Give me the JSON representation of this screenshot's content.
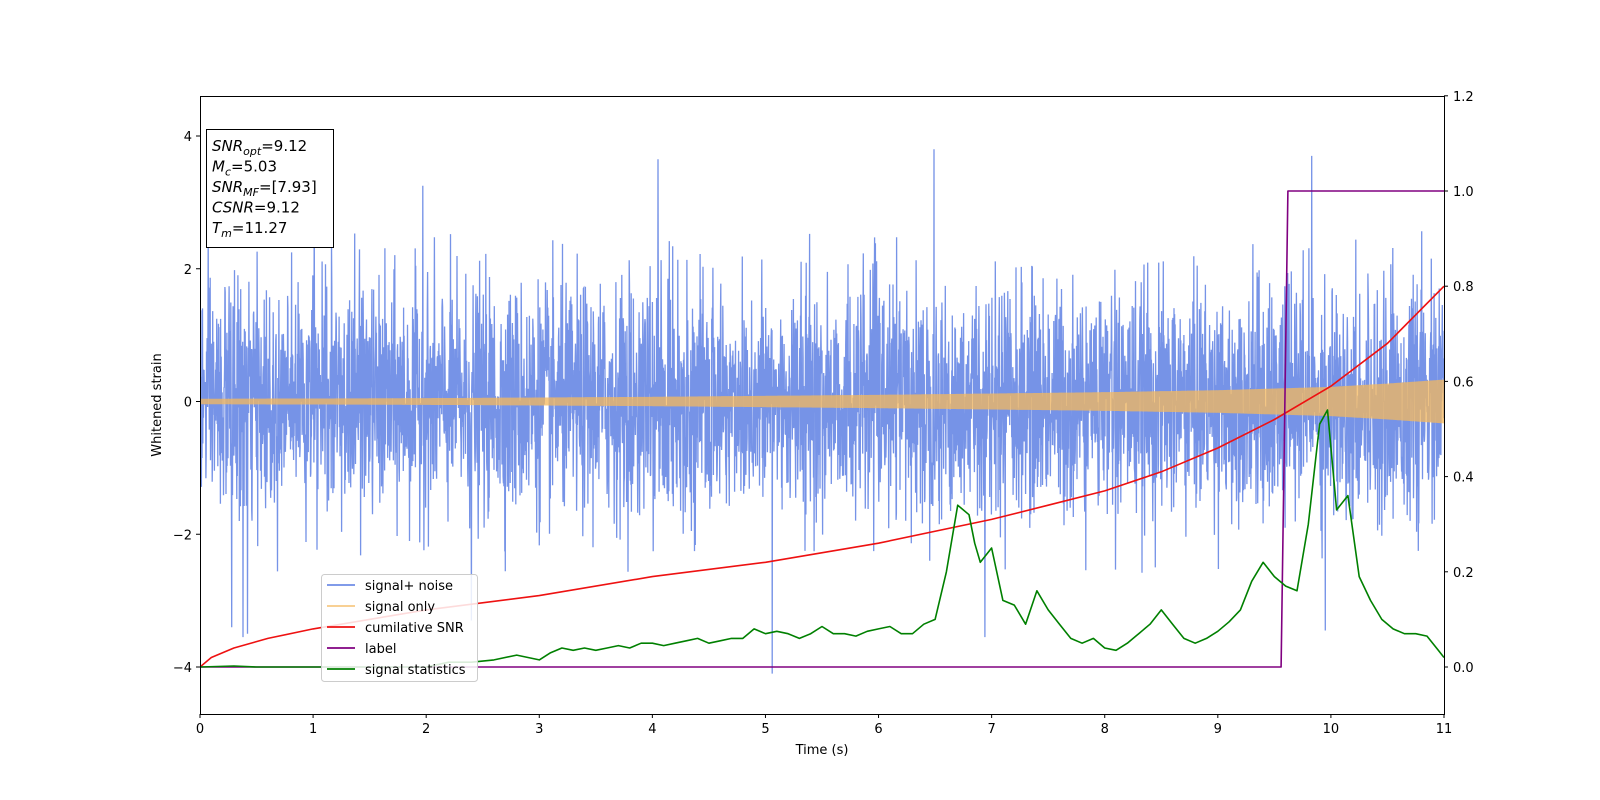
{
  "chart_data": {
    "type": "line",
    "xlabel": "Time (s)",
    "ylabel": "Whitened strain",
    "xlim": [
      0,
      11
    ],
    "ylim_left": [
      -4.5,
      4.6
    ],
    "ylim_right": [
      -0.1,
      1.2
    ],
    "xticks": [
      "0",
      "1",
      "2",
      "3",
      "4",
      "5",
      "6",
      "7",
      "8",
      "9",
      "10",
      "11"
    ],
    "yticks_left": [
      "−4",
      "−2",
      "0",
      "2",
      "4"
    ],
    "yticks_right": [
      "0.0",
      "0.2",
      "0.4",
      "0.6",
      "0.8",
      "1.0",
      "1.2"
    ],
    "info_box": {
      "lines": [
        {
          "base": "SNR",
          "sub": "opt",
          "rest": "=9.12"
        },
        {
          "base": "M",
          "sub": "c",
          "rest": "=5.03"
        },
        {
          "base": "SNR",
          "sub": "MF",
          "rest": "=[7.93]"
        },
        {
          "base": "CSNR",
          "sub": "",
          "rest": "=9.12"
        },
        {
          "base": "T",
          "sub": "m",
          "rest": "=11.27"
        }
      ]
    },
    "series": [
      {
        "name": "signal+ noise",
        "axis": "left",
        "color": "#6f8de6",
        "description": "noisy whitened strain, amplitude approx ±2.5 with spikes to ±3.8",
        "spikes": [
          [
            1.01,
            3.3
          ],
          [
            1.97,
            3.25
          ],
          [
            4.05,
            3.65
          ],
          [
            6.49,
            3.8
          ],
          [
            9.83,
            3.7
          ],
          [
            5.06,
            -4.1
          ],
          [
            9.95,
            -3.45
          ],
          [
            0.38,
            -3.55
          ],
          [
            0.28,
            -3.4
          ],
          [
            0.42,
            -3.5
          ],
          [
            2.4,
            -3.3
          ],
          [
            6.94,
            -3.55
          ]
        ]
      },
      {
        "name": "signal only",
        "axis": "left",
        "color": "#f5b85c",
        "description": "chirp signal, amplitude grows",
        "amplitude": [
          [
            0,
            0.04
          ],
          [
            2,
            0.05
          ],
          [
            4,
            0.07
          ],
          [
            6,
            0.1
          ],
          [
            8,
            0.14
          ],
          [
            9,
            0.17
          ],
          [
            10,
            0.22
          ],
          [
            10.5,
            0.27
          ],
          [
            11,
            0.33
          ]
        ]
      },
      {
        "name": "cumilative SNR",
        "axis": "right",
        "color": "#ee1111",
        "x": [
          0,
          0.1,
          0.3,
          0.6,
          1,
          2,
          3,
          4,
          5,
          6,
          7,
          7.5,
          8,
          8.5,
          9,
          9.5,
          10,
          10.5,
          11
        ],
        "y": [
          0.0,
          0.02,
          0.04,
          0.06,
          0.08,
          0.12,
          0.15,
          0.19,
          0.22,
          0.26,
          0.31,
          0.34,
          0.37,
          0.41,
          0.46,
          0.52,
          0.59,
          0.68,
          0.8
        ]
      },
      {
        "name": "label",
        "axis": "right",
        "color": "#800080",
        "x": [
          0,
          9.56,
          9.62,
          11
        ],
        "y": [
          0,
          0,
          1,
          1
        ]
      },
      {
        "name": "signal statistics",
        "axis": "right",
        "color": "#008000",
        "x": [
          0,
          0.3,
          0.5,
          1,
          1.5,
          2,
          2.2,
          2.4,
          2.6,
          2.8,
          2.9,
          3.0,
          3.1,
          3.2,
          3.3,
          3.4,
          3.5,
          3.6,
          3.7,
          3.8,
          3.9,
          4.0,
          4.1,
          4.2,
          4.3,
          4.4,
          4.5,
          4.6,
          4.7,
          4.8,
          4.9,
          5.0,
          5.1,
          5.2,
          5.3,
          5.4,
          5.5,
          5.6,
          5.7,
          5.8,
          5.9,
          6.0,
          6.1,
          6.2,
          6.3,
          6.4,
          6.5,
          6.6,
          6.7,
          6.8,
          6.85,
          6.9,
          7.0,
          7.1,
          7.2,
          7.3,
          7.4,
          7.5,
          7.6,
          7.7,
          7.8,
          7.9,
          8.0,
          8.1,
          8.2,
          8.3,
          8.4,
          8.5,
          8.6,
          8.7,
          8.8,
          8.9,
          9.0,
          9.1,
          9.2,
          9.3,
          9.4,
          9.5,
          9.6,
          9.7,
          9.8,
          9.9,
          9.97,
          10.05,
          10.15,
          10.25,
          10.35,
          10.45,
          10.55,
          10.65,
          10.75,
          10.85,
          10.95,
          11.0
        ],
        "y": [
          0.0,
          0.002,
          0.0,
          0.0,
          0.0,
          0.0,
          0.01,
          0.01,
          0.015,
          0.025,
          0.02,
          0.015,
          0.03,
          0.04,
          0.035,
          0.04,
          0.035,
          0.04,
          0.045,
          0.04,
          0.05,
          0.05,
          0.045,
          0.05,
          0.055,
          0.06,
          0.05,
          0.055,
          0.06,
          0.06,
          0.08,
          0.07,
          0.075,
          0.07,
          0.06,
          0.07,
          0.085,
          0.07,
          0.07,
          0.065,
          0.075,
          0.08,
          0.085,
          0.07,
          0.07,
          0.09,
          0.1,
          0.2,
          0.34,
          0.32,
          0.26,
          0.22,
          0.25,
          0.14,
          0.13,
          0.09,
          0.16,
          0.12,
          0.09,
          0.06,
          0.05,
          0.06,
          0.04,
          0.035,
          0.05,
          0.07,
          0.09,
          0.12,
          0.09,
          0.06,
          0.05,
          0.06,
          0.075,
          0.095,
          0.12,
          0.18,
          0.22,
          0.19,
          0.17,
          0.16,
          0.3,
          0.51,
          0.54,
          0.33,
          0.36,
          0.19,
          0.14,
          0.1,
          0.08,
          0.07,
          0.07,
          0.065,
          0.035,
          0.02
        ]
      }
    ],
    "legend": {
      "placement": "lower-left"
    }
  }
}
